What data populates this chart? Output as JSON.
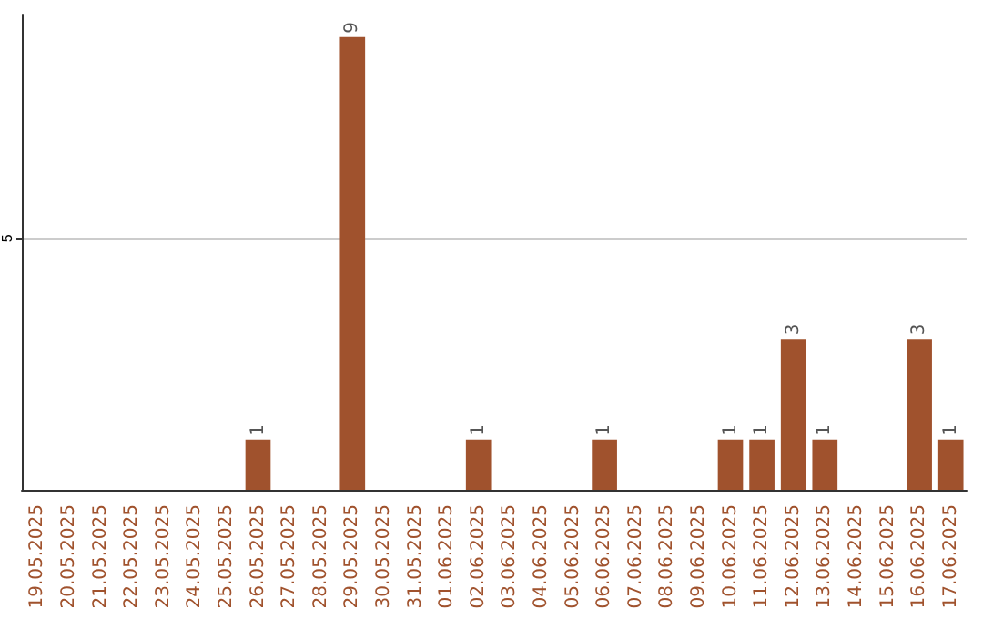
{
  "chart_data": {
    "type": "bar",
    "categories": [
      "19.05.2025",
      "20.05.2025",
      "21.05.2025",
      "22.05.2025",
      "23.05.2025",
      "24.05.2025",
      "25.05.2025",
      "26.05.2025",
      "27.05.2025",
      "28.05.2025",
      "29.05.2025",
      "30.05.2025",
      "31.05.2025",
      "01.06.2025",
      "02.06.2025",
      "03.06.2025",
      "04.06.2025",
      "05.06.2025",
      "06.06.2025",
      "07.06.2025",
      "08.06.2025",
      "09.06.2025",
      "10.06.2025",
      "11.06.2025",
      "12.06.2025",
      "13.06.2025",
      "14.06.2025",
      "15.06.2025",
      "16.06.2025",
      "17.06.2025"
    ],
    "values": [
      0,
      0,
      0,
      0,
      0,
      0,
      0,
      1,
      0,
      0,
      9,
      0,
      0,
      0,
      1,
      0,
      0,
      0,
      1,
      0,
      0,
      0,
      1,
      1,
      3,
      1,
      0,
      0,
      3,
      1
    ],
    "value_labels": [
      null,
      null,
      null,
      null,
      null,
      null,
      null,
      "1",
      null,
      null,
      "9",
      null,
      null,
      null,
      "1",
      null,
      null,
      null,
      "1",
      null,
      null,
      null,
      "1",
      "1",
      "3",
      "1",
      null,
      null,
      "3",
      "1"
    ],
    "color": "#a0522d",
    "ylim": [
      0,
      9.45
    ],
    "yticks": [
      5
    ],
    "grid": "y"
  }
}
